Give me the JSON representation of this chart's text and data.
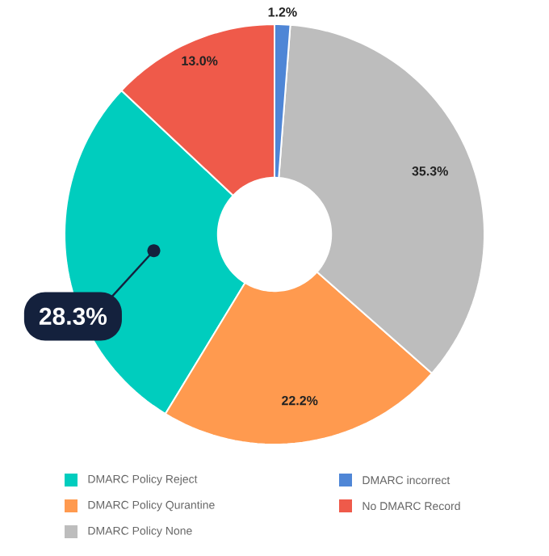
{
  "chart_data": {
    "type": "donut",
    "categories": [
      "DMARC Policy Reject",
      "DMARC Policy Qurantine",
      "DMARC Policy None",
      "DMARC incorrect",
      "No DMARC Record"
    ],
    "values": [
      28.3,
      22.2,
      35.3,
      1.2,
      13.0
    ],
    "value_labels": [
      "28.3%",
      "22.2%",
      "35.3%",
      "1.2%",
      "13.0%"
    ],
    "colors": [
      "#00cdbe",
      "#ff9a4f",
      "#bdbdbd",
      "#4f86d6",
      "#ef5a4a"
    ],
    "legend": "bottom"
  }
}
